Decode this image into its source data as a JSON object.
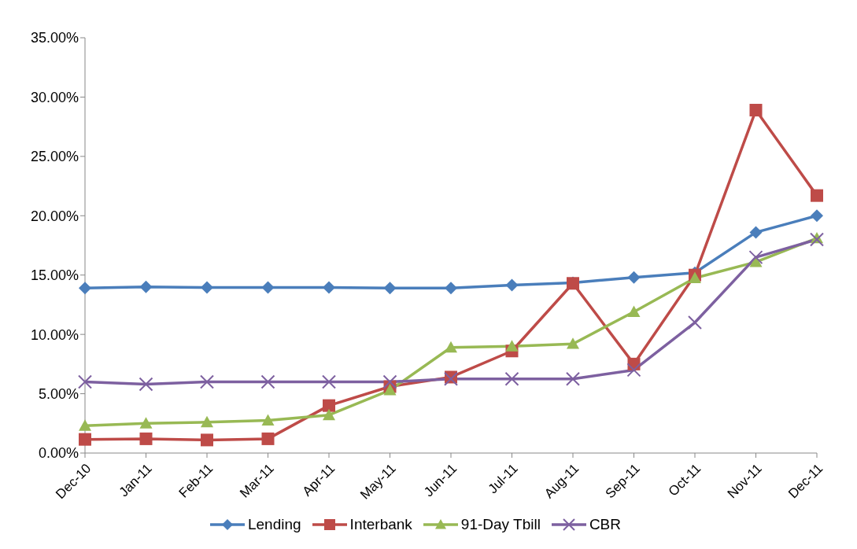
{
  "chart_data": {
    "type": "line",
    "categories": [
      "Dec-10",
      "Jan-11",
      "Feb-11",
      "Mar-11",
      "Apr-11",
      "May-11",
      "Jun-11",
      "Jul-11",
      "Aug-11",
      "Sep-11",
      "Oct-11",
      "Nov-11",
      "Dec-11"
    ],
    "series": [
      {
        "name": "Lending",
        "color": "#4a7ebb",
        "marker": "diamond",
        "values": [
          13.9,
          14.0,
          13.95,
          13.95,
          13.95,
          13.9,
          13.9,
          14.15,
          14.35,
          14.8,
          15.2,
          18.6,
          20.0
        ]
      },
      {
        "name": "Interbank",
        "color": "#be4b48",
        "marker": "square",
        "values": [
          1.15,
          1.2,
          1.1,
          1.2,
          4.0,
          5.6,
          6.4,
          8.6,
          14.3,
          7.5,
          15.0,
          28.9,
          21.7
        ]
      },
      {
        "name": "91-Day Tbill",
        "color": "#98b954",
        "marker": "triangle",
        "values": [
          2.3,
          2.5,
          2.6,
          2.75,
          3.2,
          5.3,
          8.9,
          9.0,
          9.2,
          11.9,
          14.75,
          16.1,
          18.1
        ]
      },
      {
        "name": "CBR",
        "color": "#7d60a0",
        "marker": "cross",
        "values": [
          6.0,
          5.8,
          6.0,
          6.0,
          6.0,
          6.0,
          6.25,
          6.25,
          6.25,
          7.0,
          11.0,
          16.5,
          18.0
        ]
      }
    ],
    "ylim": [
      0,
      35
    ],
    "yticks": [
      {
        "value": 0,
        "label": "0.00%"
      },
      {
        "value": 5,
        "label": "5.00%"
      },
      {
        "value": 10,
        "label": "10.00%"
      },
      {
        "value": 15,
        "label": "15.00%"
      },
      {
        "value": 20,
        "label": "20.00%"
      },
      {
        "value": 25,
        "label": "25.00%"
      },
      {
        "value": 30,
        "label": "30.00%"
      },
      {
        "value": 35,
        "label": "35.00%"
      }
    ],
    "grid": false,
    "legend": "bottom",
    "line_style": "solid"
  }
}
